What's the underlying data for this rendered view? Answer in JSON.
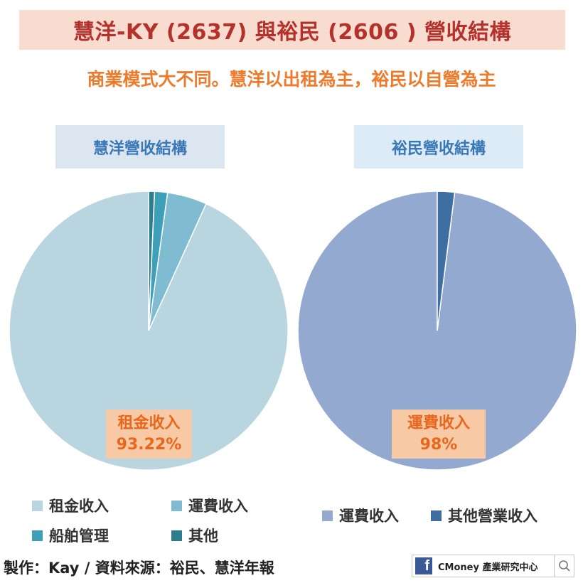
{
  "header": {
    "title": "慧洋-KY (2637) 與裕民 (2606 ) 營收結構",
    "subtitle": "商業模式大不同。慧洋以出租為主，裕民以自營為主"
  },
  "chart_data": [
    {
      "type": "pie",
      "title": "慧洋營收結構",
      "labels": [
        "租金收入",
        "運費收入",
        "船舶管理",
        "其他"
      ],
      "values": [
        93.22,
        4.6,
        1.5,
        0.68
      ],
      "colors": [
        "#b9d5e0",
        "#7fbcd2",
        "#3e9fb8",
        "#2e7d8f"
      ],
      "annotations": [
        {
          "label": "租金收入",
          "value": "93.22%"
        }
      ],
      "legend": "bottom"
    },
    {
      "type": "pie",
      "title": "裕民營收結構",
      "labels": [
        "運費收入",
        "其他營業收入"
      ],
      "values": [
        98,
        2
      ],
      "colors": [
        "#94a9cf",
        "#3f6ea3"
      ],
      "annotations": [
        {
          "label": "運費收入",
          "value": "98%"
        }
      ],
      "legend": "bottom"
    }
  ],
  "footer": {
    "credit": "製作：Kay / 資料來源：裕民、慧洋年報",
    "brand_text": "CMoney 產業研究中心",
    "facebook_icon": "facebook-icon",
    "search_icon": "search-icon"
  }
}
